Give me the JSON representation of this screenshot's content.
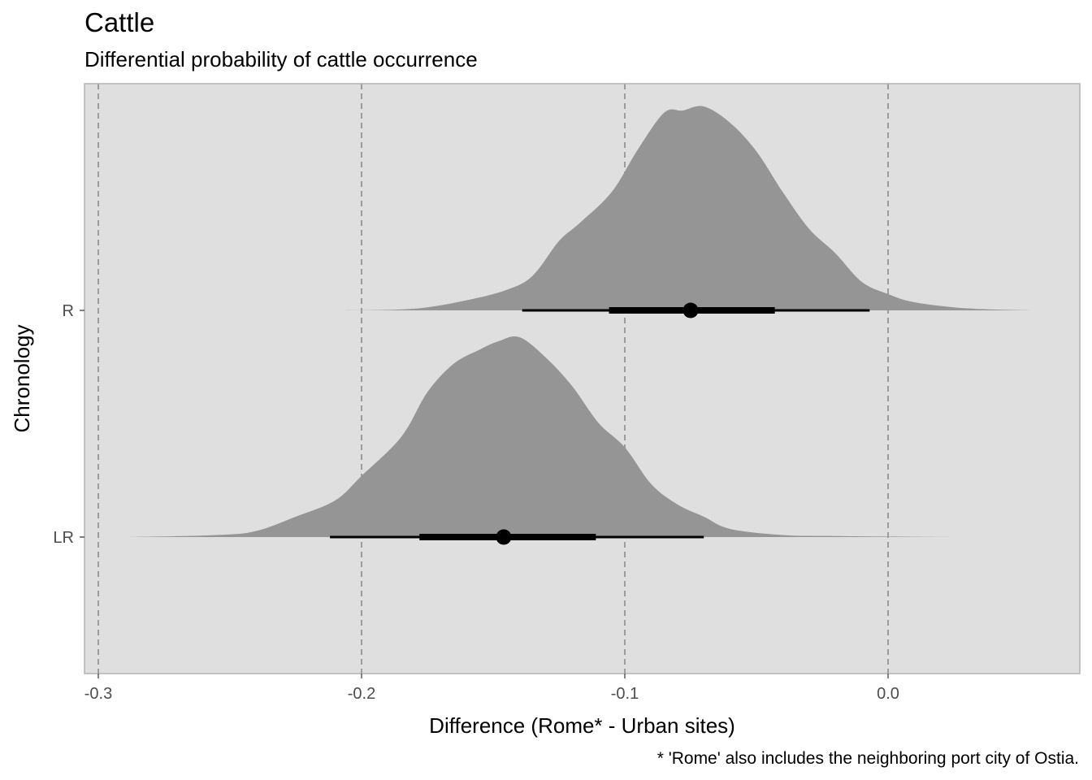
{
  "chart_data": {
    "type": "area",
    "title": "Cattle",
    "subtitle": "Differential probability of cattle occurrence",
    "caption": "* 'Rome' also includes the neighboring port city of Ostia.",
    "xlabel": "Difference (Rome* - Urban sites)",
    "ylabel": "Chronology",
    "xlim": [
      -0.306,
      0.073
    ],
    "x_ticks": [
      -0.3,
      -0.2,
      -0.1,
      0.0
    ],
    "x_tick_labels": [
      "-0.3",
      "-0.2",
      "-0.1",
      "0.0"
    ],
    "categories": [
      "R",
      "LR"
    ],
    "grid": "vertical dashed at x ticks",
    "colors": {
      "panel_background": "#dfdfdf",
      "panel_border": "#b3b3b3",
      "density_fill": "#959595",
      "grid_line": "#7f7f7f",
      "interval": "#000000"
    },
    "series": [
      {
        "name": "R",
        "point": -0.075,
        "interval_66": [
          -0.106,
          -0.043
        ],
        "interval_95": [
          -0.139,
          -0.007
        ],
        "density": [
          [
            -0.207,
            0.0
          ],
          [
            -0.18,
            0.008
          ],
          [
            -0.16,
            0.05
          ],
          [
            -0.145,
            0.1
          ],
          [
            -0.135,
            0.17
          ],
          [
            -0.125,
            0.34
          ],
          [
            -0.117,
            0.43
          ],
          [
            -0.105,
            0.58
          ],
          [
            -0.095,
            0.79
          ],
          [
            -0.085,
            0.97
          ],
          [
            -0.078,
            0.98
          ],
          [
            -0.07,
            1.0
          ],
          [
            -0.06,
            0.92
          ],
          [
            -0.05,
            0.78
          ],
          [
            -0.04,
            0.58
          ],
          [
            -0.03,
            0.4
          ],
          [
            -0.02,
            0.28
          ],
          [
            -0.01,
            0.14
          ],
          [
            0.0,
            0.08
          ],
          [
            0.01,
            0.04
          ],
          [
            0.03,
            0.01
          ],
          [
            0.055,
            0.0
          ]
        ]
      },
      {
        "name": "LR",
        "point": -0.146,
        "interval_66": [
          -0.178,
          -0.111
        ],
        "interval_95": [
          -0.212,
          -0.07
        ],
        "density": [
          [
            -0.29,
            0.0
          ],
          [
            -0.255,
            0.01
          ],
          [
            -0.24,
            0.03
          ],
          [
            -0.225,
            0.1
          ],
          [
            -0.21,
            0.18
          ],
          [
            -0.2,
            0.3
          ],
          [
            -0.185,
            0.49
          ],
          [
            -0.175,
            0.71
          ],
          [
            -0.165,
            0.85
          ],
          [
            -0.155,
            0.92
          ],
          [
            -0.148,
            0.96
          ],
          [
            -0.14,
            0.98
          ],
          [
            -0.13,
            0.88
          ],
          [
            -0.12,
            0.74
          ],
          [
            -0.11,
            0.56
          ],
          [
            -0.1,
            0.44
          ],
          [
            -0.09,
            0.26
          ],
          [
            -0.08,
            0.16
          ],
          [
            -0.07,
            0.1
          ],
          [
            -0.06,
            0.04
          ],
          [
            -0.04,
            0.01
          ],
          [
            -0.02,
            0.005
          ],
          [
            0.024,
            0.0
          ]
        ]
      }
    ]
  }
}
